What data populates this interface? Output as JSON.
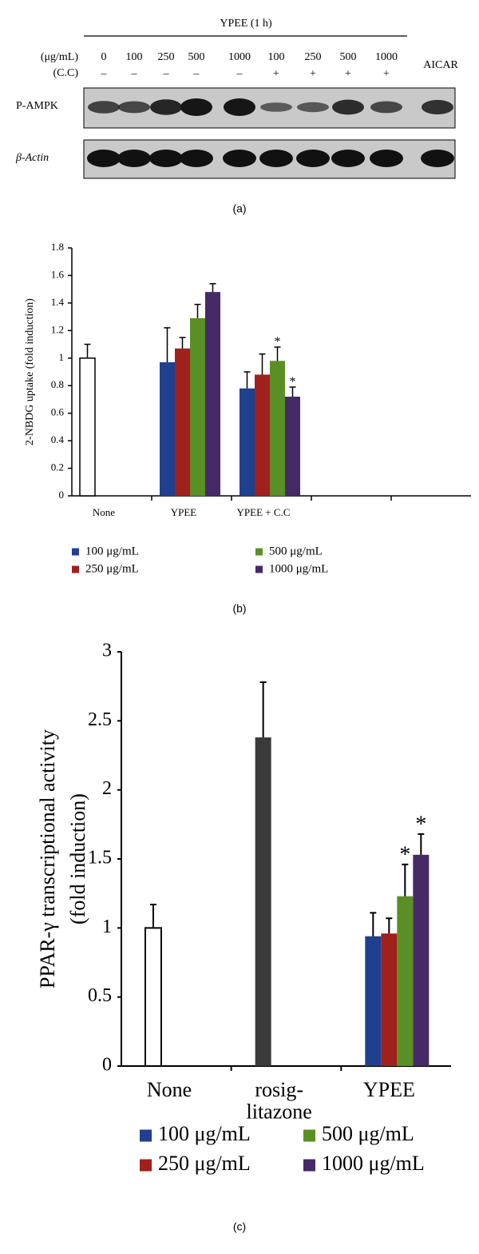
{
  "blot": {
    "header": "YPEE (1 h)",
    "row_labels": [
      "(μg/mL)",
      "(C.C)"
    ],
    "concentrations": [
      "0",
      "100",
      "250",
      "500",
      "1000",
      "100",
      "250",
      "500",
      "1000"
    ],
    "cc": [
      "–",
      "–",
      "–",
      "–",
      "–",
      "+",
      "+",
      "+",
      "+"
    ],
    "control": "AICAR",
    "bands": [
      "P-AMPK",
      "β-Actin"
    ],
    "caption": "(a)"
  },
  "chart_data": [
    {
      "type": "bar",
      "ylabel": [
        "2-NBDG uptake (fold induction)"
      ],
      "categories": [
        "None",
        "YPEE",
        "YPEE + C.C",
        null,
        null
      ],
      "series": [
        {
          "color": "#ffffff",
          "values": [
            1,
            null,
            null,
            null,
            null
          ],
          "errors": [
            0.1,
            null,
            null,
            null,
            null
          ],
          "significance": [
            null,
            null,
            null,
            null,
            null
          ]
        },
        {
          "name": "100 μg/mL",
          "color": "#1f3f8f",
          "values": [
            null,
            0.97,
            0.78,
            null,
            null
          ],
          "errors": [
            null,
            0.25,
            0.12,
            null,
            null
          ],
          "significance": [
            null,
            null,
            null,
            null,
            null
          ]
        },
        {
          "name": "250 μg/mL",
          "color": "#a0201e",
          "values": [
            null,
            1.07,
            0.88,
            null,
            null
          ],
          "errors": [
            null,
            0.08,
            0.15,
            null,
            null
          ],
          "significance": [
            null,
            null,
            null,
            null,
            null
          ]
        },
        {
          "name": "500 μg/mL",
          "color": "#5a8f25",
          "values": [
            null,
            1.29,
            0.98,
            null,
            null
          ],
          "errors": [
            null,
            0.1,
            0.1,
            null,
            null
          ],
          "significance": [
            null,
            null,
            "*",
            null,
            null
          ]
        },
        {
          "name": "1000 μg/mL",
          "color": "#452a66",
          "values": [
            null,
            1.48,
            0.72,
            null,
            null
          ],
          "errors": [
            null,
            0.06,
            0.07,
            null,
            null
          ],
          "significance": [
            null,
            null,
            "*",
            null,
            null
          ]
        }
      ],
      "ylim": [
        0,
        1.8
      ],
      "yticks": [
        0,
        0.2,
        0.4,
        0.6,
        0.8,
        1,
        1.2,
        1.4,
        1.6,
        1.8
      ],
      "caption": "(b)"
    },
    {
      "type": "bar",
      "ylabel": [
        "PPAR-γ transcriptional activity",
        "(fold induction)"
      ],
      "categories": [
        "None",
        "rosig-\nlitazone",
        "YPEE"
      ],
      "series": [
        {
          "color": "#ffffff",
          "values": [
            1,
            null,
            null
          ],
          "errors": [
            0.17,
            null,
            null
          ],
          "significance": [
            null,
            null,
            null
          ]
        },
        {
          "color": "#3a3a3a",
          "values": [
            null,
            2.38,
            null
          ],
          "errors": [
            null,
            0.4,
            null
          ],
          "significance": [
            null,
            null,
            null
          ]
        },
        {
          "name": "100 μg/mL",
          "color": "#1f3f8f",
          "values": [
            null,
            null,
            0.94
          ],
          "errors": [
            null,
            null,
            0.17
          ],
          "significance": [
            null,
            null,
            null
          ]
        },
        {
          "name": "250 μg/mL",
          "color": "#a0201e",
          "values": [
            null,
            null,
            0.96
          ],
          "errors": [
            null,
            null,
            0.11
          ],
          "significance": [
            null,
            null,
            null
          ]
        },
        {
          "name": "500 μg/mL",
          "color": "#5a8f25",
          "values": [
            null,
            null,
            1.23
          ],
          "errors": [
            null,
            null,
            0.23
          ],
          "significance": [
            null,
            null,
            "*"
          ]
        },
        {
          "name": "1000 μg/mL",
          "color": "#452a66",
          "values": [
            null,
            null,
            1.53
          ],
          "errors": [
            null,
            null,
            0.15
          ],
          "significance": [
            null,
            null,
            "*"
          ]
        }
      ],
      "ylim": [
        0,
        3
      ],
      "yticks": [
        0,
        0.5,
        1,
        1.5,
        2,
        2.5,
        3
      ],
      "caption": "(c)"
    }
  ]
}
